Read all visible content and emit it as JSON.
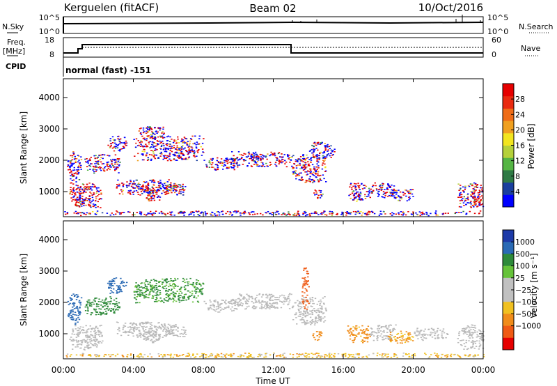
{
  "header": {
    "station": "Kerguelen (fitACF)",
    "beam": "Beam 02",
    "date": "10/Oct/2016"
  },
  "panels": {
    "nsky_label": "N.Sky",
    "nsky_ticks": [
      "10^5",
      "10^0"
    ],
    "nsearch_label": "N.Search",
    "nsearch_ticks": [
      "10^5",
      "10^0"
    ],
    "freq_label_1": "Freq.",
    "freq_label_2": "[MHz]",
    "freq_ticks": [
      "18",
      "8"
    ],
    "nave_label": "Nave",
    "nave_ticks": [
      "60",
      "0"
    ],
    "cpid_label": "CPID",
    "cpid_text": "normal (fast) -151"
  },
  "colors": {
    "power": [
      "#0000ff",
      "#1a3f9e",
      "#2f7a45",
      "#55b544",
      "#b5d13a",
      "#f2e51f",
      "#f0a020",
      "#ef6c18",
      "#ea2a10",
      "#e60000"
    ],
    "velocity": [
      "#1d3aa8",
      "#2a6ab5",
      "#2e8a3a",
      "#66c23a",
      "#c0c0c0",
      "#c0c0c0",
      "#f0c020",
      "#f08c1a",
      "#ef5a14",
      "#e60000"
    ],
    "ground_scatter": "#b9b9b9"
  },
  "chart_data": [
    {
      "type": "heatmap",
      "name": "power-panel",
      "ylabel": "Slant Range [km]",
      "ylim": [
        200,
        4600
      ],
      "yticks": [
        "1000",
        "2000",
        "3000",
        "4000"
      ],
      "xlim_hours": [
        0,
        24
      ],
      "colorbar": {
        "label": "Power [dB]",
        "range": [
          0,
          32
        ],
        "ticks": [
          "4",
          "8",
          "12",
          "16",
          "20",
          "24",
          "28"
        ]
      },
      "regions": [
        {
          "t": 0.3,
          "t2": 2.2,
          "r": 500,
          "r2": 1300,
          "v": 22
        },
        {
          "t": 0.6,
          "t2": 1.5,
          "r": 550,
          "r2": 850,
          "v": 29
        },
        {
          "t": 0.2,
          "t2": 1.0,
          "r": 1300,
          "r2": 2300,
          "v": 13
        },
        {
          "t": 1.2,
          "t2": 3.2,
          "r": 1600,
          "r2": 2200,
          "v": 10
        },
        {
          "t": 2.5,
          "t2": 3.6,
          "r": 2300,
          "r2": 2800,
          "v": 9
        },
        {
          "t": 3.0,
          "t2": 6.5,
          "r": 900,
          "r2": 1400,
          "v": 12
        },
        {
          "t": 4.5,
          "t2": 5.5,
          "r": 700,
          "r2": 1200,
          "v": 26
        },
        {
          "t": 5.8,
          "t2": 7.0,
          "r": 900,
          "r2": 1300,
          "v": 17
        },
        {
          "t": 4.0,
          "t2": 8.0,
          "r": 2000,
          "r2": 2800,
          "v": 9
        },
        {
          "t": 4.2,
          "t2": 5.8,
          "r": 2700,
          "r2": 3100,
          "v": 8
        },
        {
          "t": 8.0,
          "t2": 10.0,
          "r": 1700,
          "r2": 2100,
          "v": 10
        },
        {
          "t": 9.5,
          "t2": 13.0,
          "r": 1800,
          "r2": 2300,
          "v": 18
        },
        {
          "t": 13.0,
          "t2": 15.0,
          "r": 1300,
          "r2": 2200,
          "v": 18
        },
        {
          "t": 14.0,
          "t2": 15.5,
          "r": 2000,
          "r2": 2600,
          "v": 9
        },
        {
          "t": 14.2,
          "t2": 14.8,
          "r": 800,
          "r2": 1100,
          "v": 12
        },
        {
          "t": 16.2,
          "t2": 17.5,
          "r": 700,
          "r2": 1300,
          "v": 14
        },
        {
          "t": 17.5,
          "t2": 19.0,
          "r": 800,
          "r2": 1300,
          "v": 10
        },
        {
          "t": 18.5,
          "t2": 20.0,
          "r": 700,
          "r2": 1100,
          "v": 9
        },
        {
          "t": 22.5,
          "t2": 24.0,
          "r": 500,
          "r2": 1300,
          "v": 15
        },
        {
          "t": 23.2,
          "t2": 24.0,
          "r": 500,
          "r2": 900,
          "v": 26
        },
        {
          "t": 0.0,
          "t2": 24.0,
          "r": 250,
          "r2": 400,
          "v": 8
        }
      ]
    },
    {
      "type": "heatmap",
      "name": "velocity-panel",
      "ylabel": "Slant Range [km]",
      "ylim": [
        200,
        4600
      ],
      "yticks": [
        "1000",
        "2000",
        "3000",
        "4000"
      ],
      "xlim_hours": [
        0,
        24
      ],
      "xticks": [
        "00:00",
        "04:00",
        "08:00",
        "12:00",
        "16:00",
        "20:00",
        "00:00"
      ],
      "xlabel": "Time UT",
      "colorbar": {
        "label": "Velocity [m s⁻¹]",
        "ticks": [
          "1000",
          "500",
          "100",
          "25",
          "−25",
          "−100",
          "−500",
          "−1000"
        ]
      },
      "regions": [
        {
          "t": 0.3,
          "t2": 2.2,
          "r": 500,
          "r2": 1300,
          "v": 0,
          "g": true
        },
        {
          "t": 0.2,
          "t2": 1.0,
          "r": 1300,
          "r2": 2300,
          "v": 800
        },
        {
          "t": 1.2,
          "t2": 3.2,
          "r": 1600,
          "r2": 2200,
          "v": 300
        },
        {
          "t": 2.5,
          "t2": 3.6,
          "r": 2300,
          "r2": 2800,
          "v": 800
        },
        {
          "t": 3.0,
          "t2": 6.5,
          "r": 900,
          "r2": 1400,
          "v": 0,
          "g": true
        },
        {
          "t": 4.5,
          "t2": 5.5,
          "r": 700,
          "r2": 1200,
          "v": 0,
          "g": true
        },
        {
          "t": 5.8,
          "t2": 7.0,
          "r": 900,
          "r2": 1300,
          "v": 0,
          "g": true
        },
        {
          "t": 4.0,
          "t2": 8.0,
          "r": 2000,
          "r2": 2800,
          "v": 120
        },
        {
          "t": 8.0,
          "t2": 10.0,
          "r": 1700,
          "r2": 2100,
          "v": 0,
          "g": true
        },
        {
          "t": 9.5,
          "t2": 13.0,
          "r": 1800,
          "r2": 2300,
          "v": 0,
          "g": true
        },
        {
          "t": 13.0,
          "t2": 15.0,
          "r": 1300,
          "r2": 2200,
          "v": 0,
          "g": true
        },
        {
          "t": 13.6,
          "t2": 14.0,
          "r": 1800,
          "r2": 3200,
          "v": -800
        },
        {
          "t": 14.2,
          "t2": 14.8,
          "r": 800,
          "r2": 1100,
          "v": -300
        },
        {
          "t": 16.2,
          "t2": 17.5,
          "r": 700,
          "r2": 1300,
          "v": -150
        },
        {
          "t": 17.5,
          "t2": 19.0,
          "r": 800,
          "r2": 1300,
          "v": 0,
          "g": true
        },
        {
          "t": 18.5,
          "t2": 20.0,
          "r": 700,
          "r2": 1100,
          "v": -120
        },
        {
          "t": 20.0,
          "t2": 22.0,
          "r": 800,
          "r2": 1200,
          "v": 0,
          "g": true
        },
        {
          "t": 22.5,
          "t2": 24.0,
          "r": 500,
          "r2": 1300,
          "v": 0,
          "g": true
        },
        {
          "t": 0.0,
          "t2": 24.0,
          "r": 250,
          "r2": 400,
          "v": -60
        }
      ]
    }
  ]
}
